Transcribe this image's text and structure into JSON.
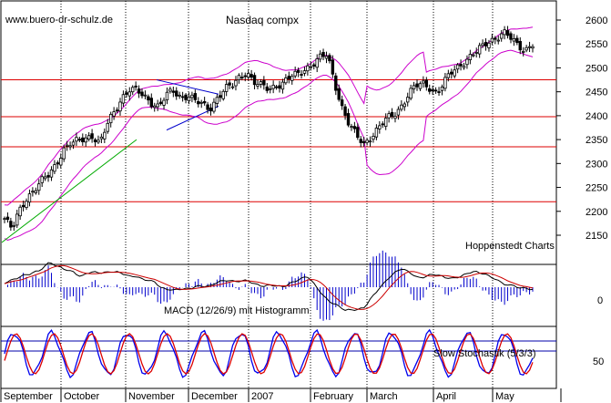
{
  "source_tag": "www.buero-dr-schulz.de",
  "chart_data": [
    {
      "type": "candlestick",
      "title": "Nasdaq compx",
      "annotation": "Hoppenstedt Charts",
      "ylim": [
        2100,
        2620
      ],
      "y_ticks": [
        "2600",
        "2550",
        "2500",
        "2450",
        "2400",
        "2350",
        "2300",
        "2250",
        "2200",
        "2150"
      ],
      "months": [
        "September",
        "October",
        "November",
        "December",
        "2007",
        "February",
        "March",
        "April",
        "May"
      ],
      "horizontal_levels": [
        2475,
        2398,
        2335,
        2220
      ],
      "close_path": [
        2185,
        2160,
        2200,
        2230,
        2245,
        2260,
        2275,
        2300,
        2330,
        2340,
        2345,
        2355,
        2360,
        2340,
        2380,
        2410,
        2440,
        2455,
        2450,
        2440,
        2430,
        2420,
        2440,
        2450,
        2440,
        2445,
        2430,
        2420,
        2415,
        2440,
        2455,
        2460,
        2480,
        2495,
        2470,
        2460,
        2455,
        2465,
        2470,
        2480,
        2485,
        2500,
        2510,
        2520,
        2525,
        2470,
        2420,
        2380,
        2355,
        2340,
        2360,
        2375,
        2390,
        2400,
        2420,
        2445,
        2460,
        2465,
        2460,
        2450,
        2470,
        2490,
        2505,
        2520,
        2530,
        2540,
        2555,
        2565,
        2575,
        2560,
        2545,
        2540,
        2552
      ]
    },
    {
      "type": "line",
      "title": "MACD (12/26/9) mit Histogramm",
      "y_ticks": [
        "0"
      ]
    },
    {
      "type": "line",
      "title": "Slow Stochastik (5/3/3)",
      "y_ticks": [
        "50"
      ]
    }
  ],
  "colors": {
    "candle": "#000000",
    "bollinger": "#cc00cc",
    "level": "#dd0000",
    "trend_green": "#00aa00",
    "trend_blue": "#0000cc",
    "histogram": "#0000cc",
    "macd": "#000000",
    "signal": "#cc0000",
    "stoch_k": "#0000ee",
    "stoch_d": "#dd0000",
    "stoch_band": "#0000aa"
  }
}
